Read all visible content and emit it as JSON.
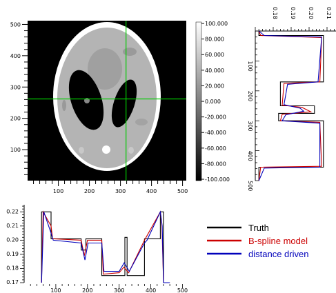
{
  "colors": {
    "truth": "#000000",
    "bspline": "#cc0000",
    "distance": "#0000bb",
    "crosshair": "#00cc00"
  },
  "legend": {
    "truth": "Truth",
    "bspline": "B-spline model",
    "distance": "distance driven"
  },
  "chart_data": [
    {
      "type": "heatmap",
      "title": "",
      "xlabel": "",
      "ylabel": "",
      "xlim": [
        1,
        512
      ],
      "ylim": [
        1,
        512
      ],
      "x_ticks": [
        "100",
        "200",
        "300",
        "400",
        "500"
      ],
      "y_ticks": [
        "100",
        "200",
        "300",
        "400",
        "500"
      ],
      "colormap": "gray",
      "colorbar_ticks": [
        "100.000",
        "80.000",
        "60.000",
        "40.000",
        "20.000",
        "0.000",
        "-20.000",
        "-40.000",
        "-60.000",
        "-80.000",
        "-100.000"
      ],
      "crosshair": {
        "x": 318,
        "y": 262
      },
      "image_description_values": {
        "background": -100,
        "outer_skull": 100,
        "brain": 20,
        "dark_ellipses": -100
      }
    },
    {
      "type": "line",
      "title": "",
      "orientation": "vertical profile",
      "x_ticks": [
        "0.18",
        "0.19",
        "0.20",
        "0.21"
      ],
      "y_ticks": [
        "100",
        "200",
        "300",
        "400",
        "500"
      ],
      "xlim": [
        0.17,
        0.215
      ],
      "ylim": [
        0,
        500
      ],
      "series": [
        {
          "name": "Truth",
          "x": [
            0.172,
            0.172,
            0.208,
            0.208,
            0.184,
            0.184,
            0.203,
            0.203,
            0.183,
            0.183,
            0.208,
            0.208,
            0.172,
            0.172
          ],
          "y": [
            0,
            15,
            15,
            170,
            170,
            250,
            250,
            275,
            275,
            300,
            300,
            455,
            455,
            500
          ]
        },
        {
          "name": "B-spline model",
          "x": [
            0.172,
            0.173,
            0.207,
            0.206,
            0.186,
            0.185,
            0.196,
            0.201,
            0.185,
            0.184,
            0.206,
            0.207,
            0.173,
            0.172
          ],
          "y": [
            0,
            15,
            22,
            170,
            175,
            248,
            255,
            270,
            278,
            300,
            305,
            452,
            455,
            500
          ]
        },
        {
          "name": "distance driven",
          "x": [
            0.172,
            0.175,
            0.207,
            0.205,
            0.188,
            0.186,
            0.195,
            0.197,
            0.187,
            0.185,
            0.206,
            0.206,
            0.175,
            0.172
          ],
          "y": [
            0,
            15,
            20,
            170,
            178,
            246,
            258,
            268,
            280,
            300,
            308,
            455,
            458,
            500
          ]
        }
      ]
    },
    {
      "type": "line",
      "title": "",
      "orientation": "horizontal profile",
      "x_ticks": [
        "100",
        "200",
        "300",
        "400",
        "500"
      ],
      "y_ticks": [
        "0.17",
        "0.18",
        "0.19",
        "0.20",
        "0.21",
        "0.22"
      ],
      "xlim": [
        0,
        512
      ],
      "ylim": [
        0.17,
        0.225
      ],
      "series": [
        {
          "name": "Truth",
          "x": [
            55,
            55,
            85,
            85,
            180,
            180,
            195,
            195,
            245,
            245,
            300,
            300,
            318,
            318,
            325,
            325,
            380,
            380,
            430,
            430,
            440,
            440,
            460
          ],
          "y": [
            0.17,
            0.22,
            0.22,
            0.201,
            0.201,
            0.193,
            0.193,
            0.201,
            0.201,
            0.175,
            0.175,
            0.175,
            0.175,
            0.202,
            0.202,
            0.175,
            0.175,
            0.201,
            0.201,
            0.22,
            0.22,
            0.17,
            0.17
          ]
        },
        {
          "name": "B-spline model",
          "x": [
            55,
            60,
            85,
            90,
            180,
            190,
            200,
            245,
            250,
            300,
            315,
            322,
            330,
            380,
            385,
            430,
            435,
            440,
            460
          ],
          "y": [
            0.17,
            0.22,
            0.21,
            0.201,
            0.2,
            0.189,
            0.2,
            0.2,
            0.176,
            0.177,
            0.181,
            0.179,
            0.177,
            0.2,
            0.202,
            0.22,
            0.21,
            0.17,
            0.17
          ]
        },
        {
          "name": "distance driven",
          "x": [
            55,
            62,
            85,
            92,
            180,
            192,
            202,
            245,
            252,
            300,
            316,
            324,
            332,
            380,
            388,
            430,
            436,
            440,
            460
          ],
          "y": [
            0.17,
            0.22,
            0.205,
            0.2,
            0.198,
            0.186,
            0.198,
            0.198,
            0.178,
            0.178,
            0.184,
            0.181,
            0.178,
            0.198,
            0.2,
            0.22,
            0.21,
            0.17,
            0.17
          ]
        }
      ]
    }
  ]
}
